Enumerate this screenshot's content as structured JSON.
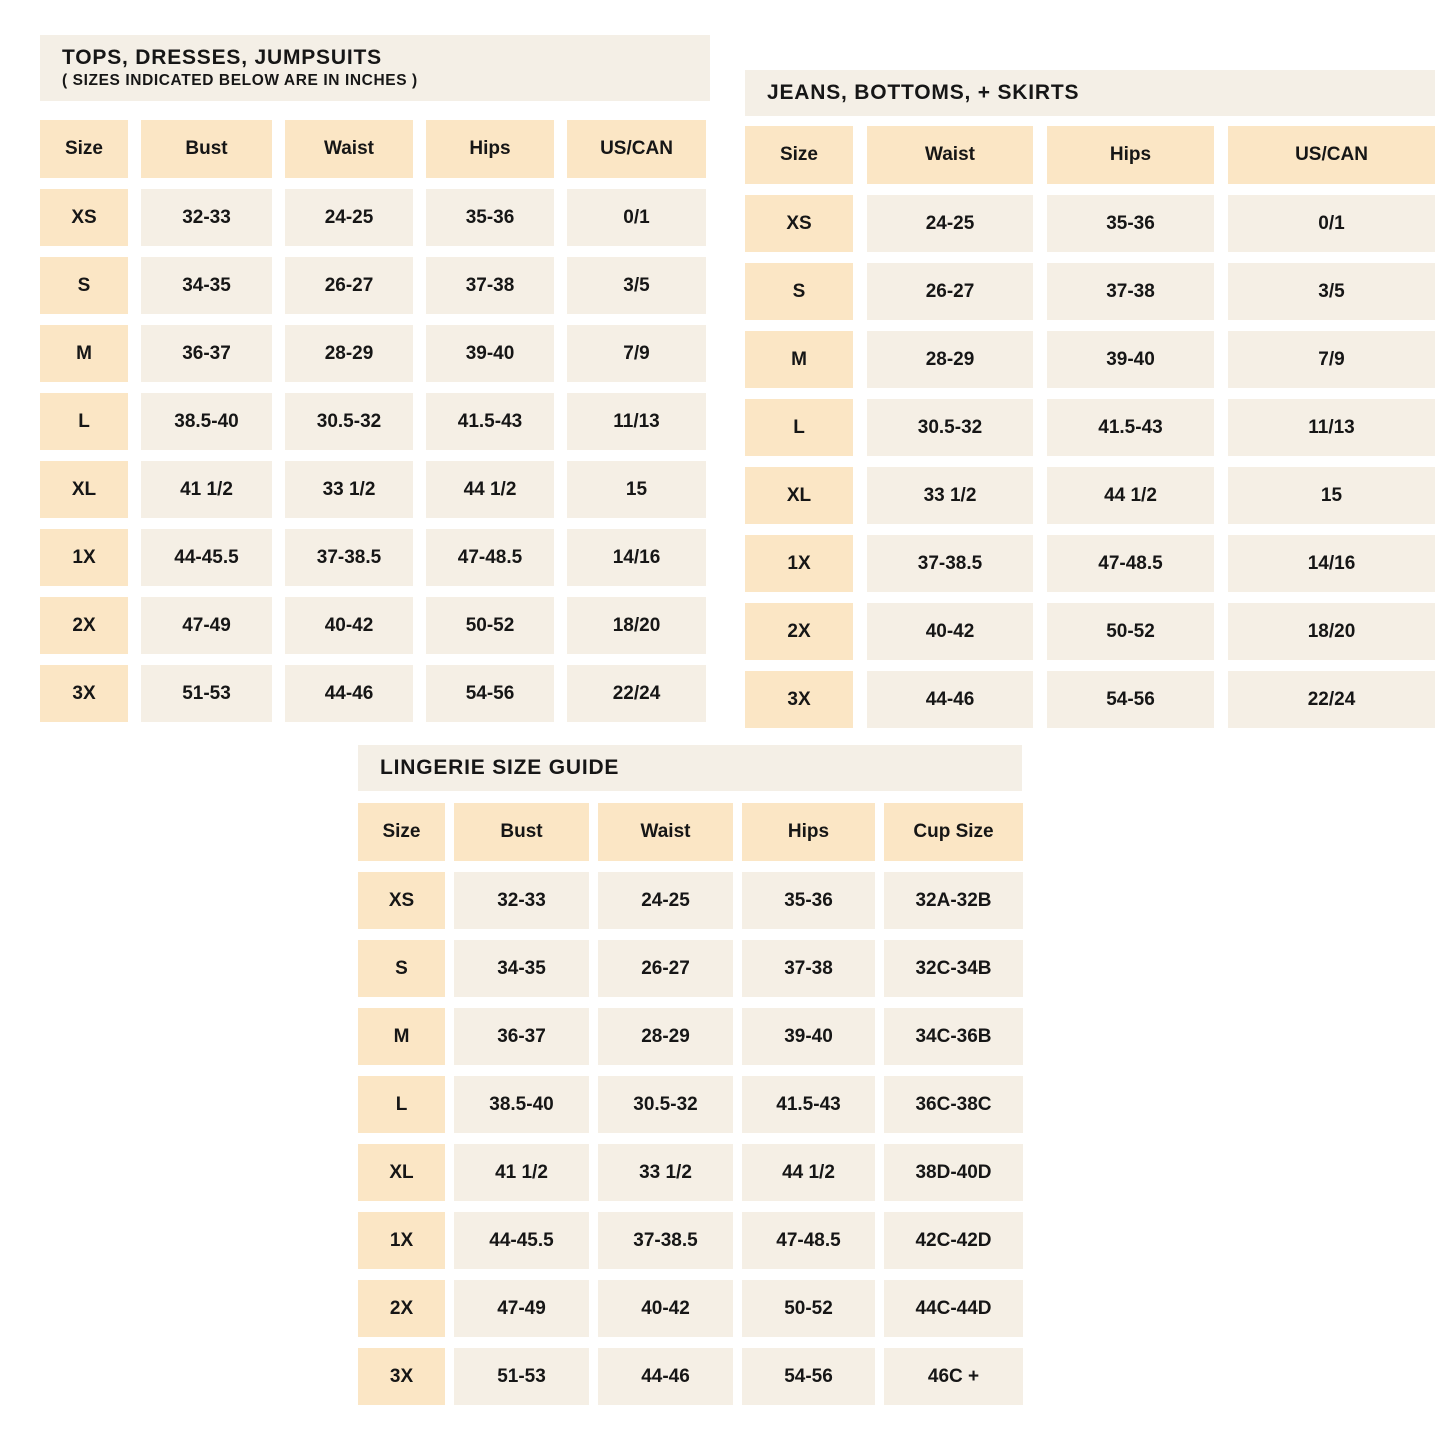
{
  "colors": {
    "page_background": "#ffffff",
    "title_bar_background": "#f4efe6",
    "header_cell_background": "#fbe6c5",
    "size_cell_background": "#fbe6c5",
    "value_cell_background": "#f5efe5",
    "text": "#161616"
  },
  "tables": [
    {
      "id": "tops-dresses-jumpsuits",
      "title": "TOPS, DRESSES, JUMPSUITS",
      "subtitle": "( SIZES INDICATED BELOW ARE IN INCHES )",
      "columns": [
        "Size",
        "Bust",
        "Waist",
        "Hips",
        "US/CAN"
      ],
      "rows": [
        [
          "XS",
          "32-33",
          "24-25",
          "35-36",
          "0/1"
        ],
        [
          "S",
          "34-35",
          "26-27",
          "37-38",
          "3/5"
        ],
        [
          "M",
          "36-37",
          "28-29",
          "39-40",
          "7/9"
        ],
        [
          "L",
          "38.5-40",
          "30.5-32",
          "41.5-43",
          "11/13"
        ],
        [
          "XL",
          "41 1/2",
          "33 1/2",
          "44 1/2",
          "15"
        ],
        [
          "1X",
          "44-45.5",
          "37-38.5",
          "47-48.5",
          "14/16"
        ],
        [
          "2X",
          "47-49",
          "40-42",
          "50-52",
          "18/20"
        ],
        [
          "3X",
          "51-53",
          "44-46",
          "54-56",
          "22/24"
        ]
      ]
    },
    {
      "id": "jeans-bottoms-skirts",
      "title": "JEANS, BOTTOMS, + SKIRTS",
      "subtitle": "",
      "columns": [
        "Size",
        "Waist",
        "Hips",
        "US/CAN"
      ],
      "rows": [
        [
          "XS",
          "24-25",
          "35-36",
          "0/1"
        ],
        [
          "S",
          "26-27",
          "37-38",
          "3/5"
        ],
        [
          "M",
          "28-29",
          "39-40",
          "7/9"
        ],
        [
          "L",
          "30.5-32",
          "41.5-43",
          "11/13"
        ],
        [
          "XL",
          "33 1/2",
          "44 1/2",
          "15"
        ],
        [
          "1X",
          "37-38.5",
          "47-48.5",
          "14/16"
        ],
        [
          "2X",
          "40-42",
          "50-52",
          "18/20"
        ],
        [
          "3X",
          "44-46",
          "54-56",
          "22/24"
        ]
      ]
    },
    {
      "id": "lingerie-size-guide",
      "title": "LINGERIE SIZE GUIDE",
      "subtitle": "",
      "columns": [
        "Size",
        "Bust",
        "Waist",
        "Hips",
        "Cup Size"
      ],
      "rows": [
        [
          "XS",
          "32-33",
          "24-25",
          "35-36",
          "32A-32B"
        ],
        [
          "S",
          "34-35",
          "26-27",
          "37-38",
          "32C-34B"
        ],
        [
          "M",
          "36-37",
          "28-29",
          "39-40",
          "34C-36B"
        ],
        [
          "L",
          "38.5-40",
          "30.5-32",
          "41.5-43",
          "36C-38C"
        ],
        [
          "XL",
          "41 1/2",
          "33 1/2",
          "44 1/2",
          "38D-40D"
        ],
        [
          "1X",
          "44-45.5",
          "37-38.5",
          "47-48.5",
          "42C-42D"
        ],
        [
          "2X",
          "47-49",
          "40-42",
          "50-52",
          "44C-44D"
        ],
        [
          "3X",
          "51-53",
          "44-46",
          "54-56",
          "46C +"
        ]
      ]
    }
  ]
}
